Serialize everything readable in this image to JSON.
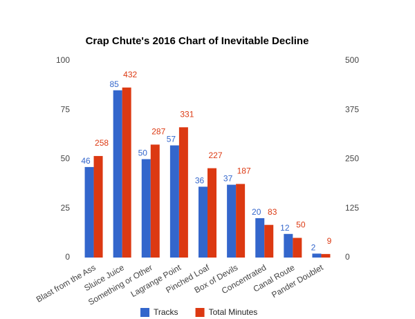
{
  "chart_data": {
    "type": "bar",
    "title": "Crap Chute's 2016 Chart of Inevitable Decline",
    "categories": [
      "Blast from the Ass",
      "Sluice Juice",
      "Something or Other",
      "Lagrange Point",
      "Pinched Loaf",
      "Box of Devils",
      "Concentrated",
      "Canal Route",
      "Pander Doublet"
    ],
    "series": [
      {
        "name": "Tracks",
        "color": "#3366cc",
        "values": [
          46,
          85,
          50,
          57,
          36,
          37,
          20,
          12,
          2
        ]
      },
      {
        "name": "Total Minutes",
        "color": "#dc3912",
        "axis": "y2",
        "values": [
          258,
          432,
          287,
          331,
          227,
          187,
          83,
          50,
          9
        ]
      }
    ],
    "ylim": [
      0,
      100
    ],
    "yticks": [
      0,
      25,
      50,
      75,
      100
    ],
    "y2lim": [
      0,
      500
    ],
    "y2ticks": [
      0,
      125,
      250,
      375,
      500
    ],
    "legend": "bottom"
  }
}
